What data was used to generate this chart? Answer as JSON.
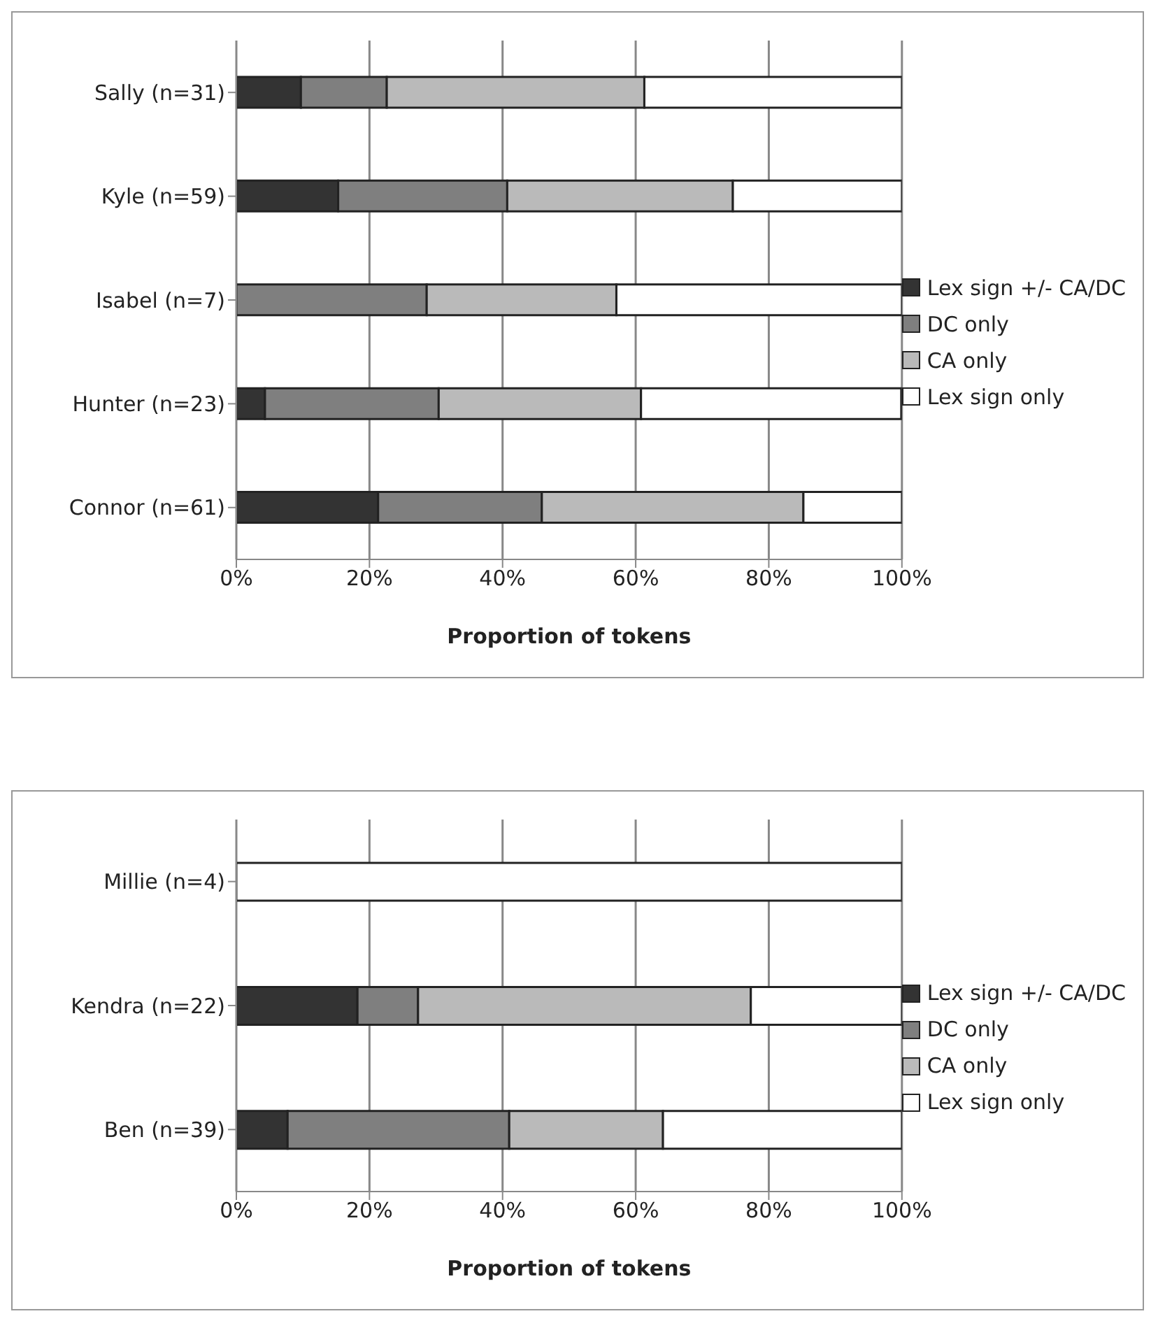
{
  "chart_data": [
    {
      "type": "bar",
      "orientation": "horizontal",
      "stacked": true,
      "xlabel": "Proportion of tokens",
      "categories": [
        "Sally (n=31)",
        "Kyle (n=59)",
        "Isabel (n=7)",
        "Hunter (n=23)",
        "Connor (n=61)"
      ],
      "series": [
        {
          "name": "Lex sign +/- CA/DC",
          "color": "#333333",
          "values": [
            9.7,
            15.3,
            0,
            4.3,
            21.3
          ]
        },
        {
          "name": "DC only",
          "color": "#7f7f7f",
          "values": [
            12.9,
            25.4,
            28.6,
            26.1,
            24.6
          ]
        },
        {
          "name": "CA only",
          "color": "#bababa",
          "values": [
            38.7,
            33.9,
            28.5,
            30.4,
            39.3
          ]
        },
        {
          "name": "Lex sign only",
          "color": "#ffffff",
          "values": [
            38.7,
            25.4,
            42.9,
            39.1,
            14.8
          ]
        }
      ],
      "xlim": [
        0,
        100
      ],
      "xticks": [
        {
          "value": 0,
          "label": "0%"
        },
        {
          "value": 20,
          "label": "20%"
        },
        {
          "value": 40,
          "label": "40%"
        },
        {
          "value": 60,
          "label": "60%"
        },
        {
          "value": 80,
          "label": "80%"
        },
        {
          "value": 100,
          "label": "100%"
        }
      ],
      "grid": "x",
      "legend": "right"
    },
    {
      "type": "bar",
      "orientation": "horizontal",
      "stacked": true,
      "xlabel": "Proportion of tokens",
      "categories": [
        "Millie (n=4)",
        "Kendra (n=22)",
        "Ben (n=39)"
      ],
      "series": [
        {
          "name": "Lex sign +/- CA/DC",
          "color": "#333333",
          "values": [
            0,
            18.2,
            7.7
          ]
        },
        {
          "name": "DC only",
          "color": "#7f7f7f",
          "values": [
            0,
            9.1,
            33.3
          ]
        },
        {
          "name": "CA only",
          "color": "#bababa",
          "values": [
            0,
            50,
            23.1
          ]
        },
        {
          "name": "Lex sign only",
          "color": "#ffffff",
          "values": [
            100,
            22.7,
            35.9
          ]
        }
      ],
      "xlim": [
        0,
        100
      ],
      "xticks": [
        {
          "value": 0,
          "label": "0%"
        },
        {
          "value": 20,
          "label": "20%"
        },
        {
          "value": 40,
          "label": "40%"
        },
        {
          "value": 60,
          "label": "60%"
        },
        {
          "value": 80,
          "label": "80%"
        },
        {
          "value": 100,
          "label": "100%"
        }
      ],
      "grid": "x",
      "legend": "right"
    }
  ]
}
